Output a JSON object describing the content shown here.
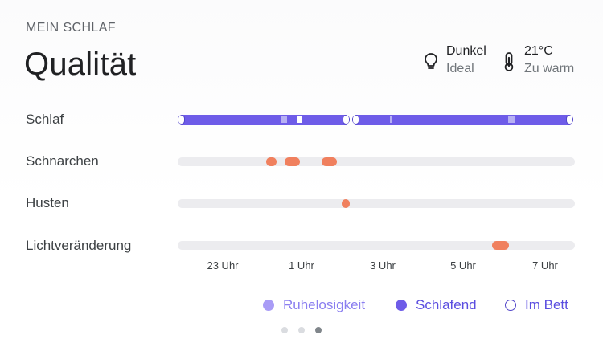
{
  "header": {
    "eyebrow": "MEIN SCHLAF",
    "title": "Qualität"
  },
  "stats": {
    "light": {
      "icon": "lightbulb-icon",
      "value": "Dunkel",
      "rating": "Ideal"
    },
    "temperature": {
      "icon": "thermometer-icon",
      "value": "21°C",
      "rating": "Zu warm"
    }
  },
  "rows": [
    {
      "label": "Schlaf"
    },
    {
      "label": "Schnarchen"
    },
    {
      "label": "Husten"
    },
    {
      "label": "Lichtveränderung"
    }
  ],
  "time_axis": [
    "23 Uhr",
    "1 Uhr",
    "3 Uhr",
    "5 Uhr",
    "7 Uhr"
  ],
  "legend": [
    {
      "label": "Ruhelosigkeit",
      "color": "#a99cf6"
    },
    {
      "label": "Schlafend",
      "color": "#6e5ce8"
    },
    {
      "label": "Im Bett",
      "color": "#ffffff"
    }
  ],
  "colors": {
    "sleep": "#6e5ce8",
    "restless": "#b7b0f3",
    "event": "#f0805e",
    "track": "#ececef"
  },
  "pagination": {
    "pages": 3,
    "active": 3
  }
}
